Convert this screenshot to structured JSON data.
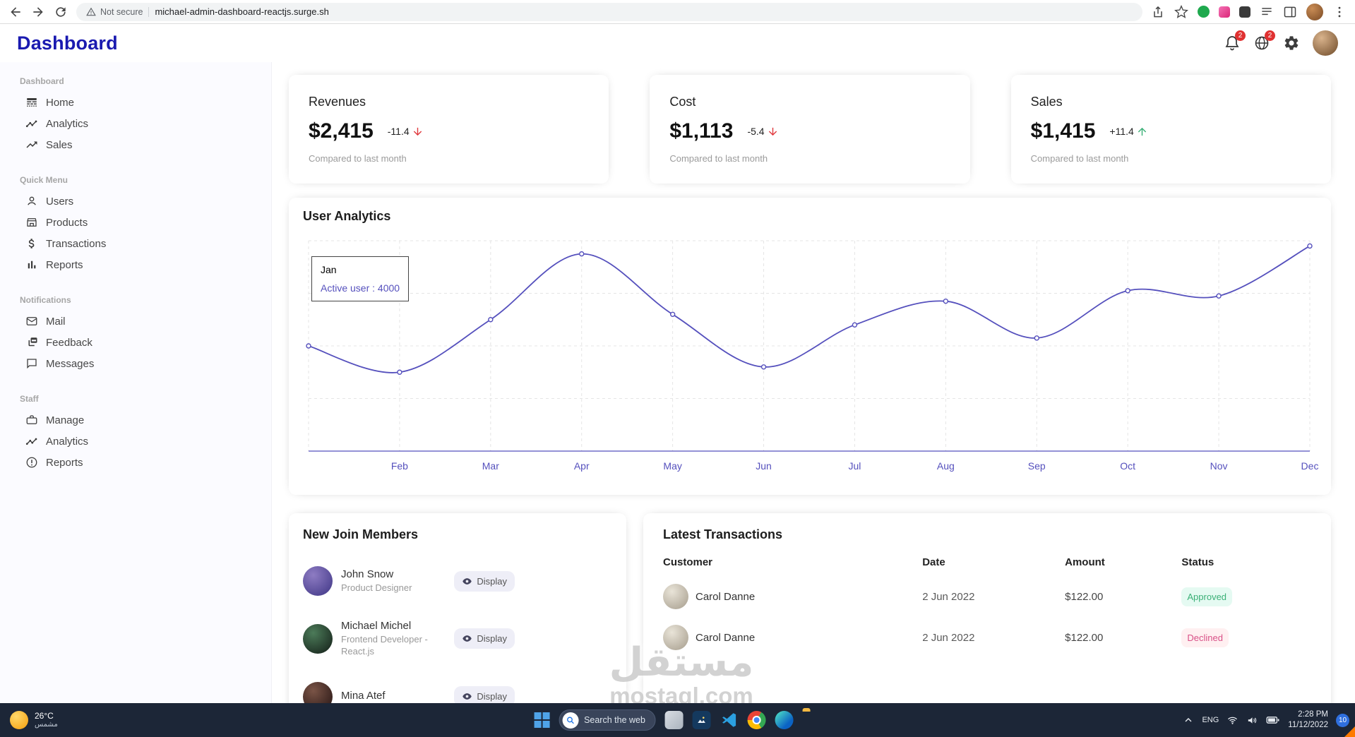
{
  "browser": {
    "security_label": "Not secure",
    "url": "michael-admin-dashboard-reactjs.surge.sh"
  },
  "header": {
    "title": "Dashboard",
    "bell_badge": "2",
    "lang_badge": "2"
  },
  "sidebar": {
    "sections": [
      {
        "title": "Dashboard",
        "items": [
          {
            "label": "Home"
          },
          {
            "label": "Analytics"
          },
          {
            "label": "Sales"
          }
        ]
      },
      {
        "title": "Quick Menu",
        "items": [
          {
            "label": "Users"
          },
          {
            "label": "Products"
          },
          {
            "label": "Transactions"
          },
          {
            "label": "Reports"
          }
        ]
      },
      {
        "title": "Notifications",
        "items": [
          {
            "label": "Mail"
          },
          {
            "label": "Feedback"
          },
          {
            "label": "Messages"
          }
        ]
      },
      {
        "title": "Staff",
        "items": [
          {
            "label": "Manage"
          },
          {
            "label": "Analytics"
          },
          {
            "label": "Reports"
          }
        ]
      }
    ]
  },
  "stats": [
    {
      "title": "Revenues",
      "value": "$2,415",
      "delta": "-11.4",
      "direction": "down",
      "note": "Compared to last month"
    },
    {
      "title": "Cost",
      "value": "$1,113",
      "delta": "-5.4",
      "direction": "down",
      "note": "Compared to last month"
    },
    {
      "title": "Sales",
      "value": "$1,415",
      "delta": "+11.4",
      "direction": "up",
      "note": "Compared to last month"
    }
  ],
  "chart_data": {
    "type": "line",
    "title": "User Analytics",
    "x": [
      "Jan",
      "Feb",
      "Mar",
      "Apr",
      "May",
      "Jun",
      "Jul",
      "Aug",
      "Sep",
      "Oct",
      "Nov",
      "Dec"
    ],
    "series": [
      {
        "name": "Active user",
        "values": [
          4000,
          3000,
          5000,
          7500,
          5200,
          3200,
          4800,
          5700,
          4300,
          6100,
          5900,
          7800
        ]
      }
    ],
    "ylim": [
      0,
      8000
    ],
    "grid": true,
    "legend": false,
    "line_color": "#5550bd",
    "xaxis_color": "#5550bd",
    "tooltip": {
      "label": "Jan",
      "text": "Active user : 4000"
    }
  },
  "members": {
    "title": "New Join Members",
    "display_label": "Display",
    "items": [
      {
        "name": "John Snow",
        "role": "Product Designer"
      },
      {
        "name": "Michael Michel",
        "role": "Frontend Developer - React.js"
      },
      {
        "name": "Mina Atef",
        "role": ""
      }
    ]
  },
  "transactions": {
    "title": "Latest Transactions",
    "columns": [
      "Customer",
      "Date",
      "Amount",
      "Status"
    ],
    "rows": [
      {
        "customer": "Carol Danne",
        "date": "2 Jun 2022",
        "amount": "$122.00",
        "status": "Approved"
      },
      {
        "customer": "Carol Danne",
        "date": "2 Jun 2022",
        "amount": "$122.00",
        "status": "Declined"
      }
    ]
  },
  "watermark": {
    "name_ar": "مستقل",
    "domain": "mostaql.com"
  },
  "taskbar": {
    "weather_temp": "26°C",
    "weather_desc": "مشمس",
    "search_text": "Search the web",
    "lang": "ENG",
    "time": "2:28 PM",
    "date": "11/12/2022",
    "badge": "10"
  }
}
